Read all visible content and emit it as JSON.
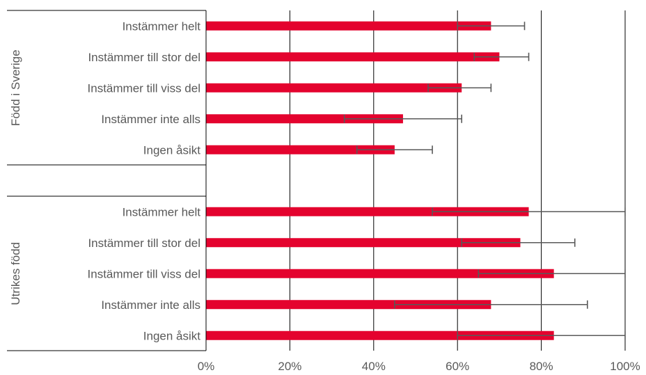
{
  "chart_data": {
    "type": "bar",
    "orientation": "horizontal",
    "title": "",
    "xlabel": "",
    "ylabel": "",
    "xlim": [
      0,
      100
    ],
    "x_ticks": [
      "0%",
      "20%",
      "40%",
      "60%",
      "80%",
      "100%"
    ],
    "grid": "vertical",
    "groups": [
      {
        "name": "Född i Sverige",
        "categories": [
          "Instämmer helt",
          "Instämmer till stor del",
          "Instämmer till viss del",
          "Instämmer inte alls",
          "Ingen åsikt"
        ],
        "values": [
          68,
          70,
          61,
          47,
          45
        ],
        "error_low": [
          60,
          64,
          53,
          33,
          36
        ],
        "error_high": [
          76,
          77,
          68,
          61,
          54
        ]
      },
      {
        "name": "Utrikes född",
        "categories": [
          "Instämmer helt",
          "Instämmer till stor del",
          "Instämmer till viss del",
          "Instämmer inte alls",
          "Ingen åsikt"
        ],
        "values": [
          77,
          75,
          83,
          68,
          83
        ],
        "error_low": [
          54,
          61,
          65,
          45,
          60
        ],
        "error_high": [
          100,
          88,
          100,
          91,
          100
        ]
      }
    ],
    "colors": {
      "bar": "#e4032e",
      "error": "#595959",
      "grid": "#000000",
      "text": "#595959"
    }
  }
}
